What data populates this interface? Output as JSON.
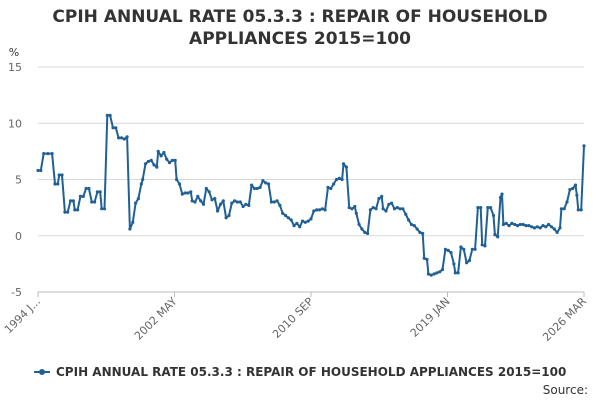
{
  "chart_data": {
    "type": "line",
    "title": "CPIH ANNUAL RATE 05.3.3 : REPAIR OF HOUSEHOLD APPLIANCES 2015=100",
    "ylabel": "%",
    "xlabel": "",
    "ylim": [
      -5,
      15
    ],
    "yticks": [
      -5,
      0,
      5,
      10,
      15
    ],
    "x_tick_labels": [
      "1994 J...",
      "2002 MAY",
      "2010 SEP",
      "2019 JAN",
      "2026 MAR"
    ],
    "x_range": [
      "1994-01",
      "2026-03"
    ],
    "grid": "horizontal",
    "legend_position": "bottom",
    "series": [
      {
        "name": "CPIH ANNUAL RATE 05.3.3 : REPAIR OF HOUSEHOLD APPLIANCES 2015=100",
        "color": "#206095",
        "points": [
          [
            "1994-01",
            5.8
          ],
          [
            "1994-03",
            5.8
          ],
          [
            "1994-05",
            7.3
          ],
          [
            "1994-08",
            7.3
          ],
          [
            "1994-11",
            7.3
          ],
          [
            "1995-01",
            4.6
          ],
          [
            "1995-03",
            4.6
          ],
          [
            "1995-04",
            5.4
          ],
          [
            "1995-06",
            5.4
          ],
          [
            "1995-08",
            2.1
          ],
          [
            "1995-10",
            2.1
          ],
          [
            "1995-12",
            3.1
          ],
          [
            "1996-02",
            3.1
          ],
          [
            "1996-03",
            2.3
          ],
          [
            "1996-05",
            2.3
          ],
          [
            "1996-07",
            3.5
          ],
          [
            "1996-09",
            3.5
          ],
          [
            "1996-11",
            4.2
          ],
          [
            "1997-01",
            4.2
          ],
          [
            "1997-03",
            3.0
          ],
          [
            "1997-05",
            3.0
          ],
          [
            "1997-07",
            3.9
          ],
          [
            "1997-09",
            3.9
          ],
          [
            "1997-10",
            2.4
          ],
          [
            "1997-12",
            2.4
          ],
          [
            "1998-02",
            10.7
          ],
          [
            "1998-04",
            10.7
          ],
          [
            "1998-06",
            9.6
          ],
          [
            "1998-08",
            9.6
          ],
          [
            "1998-10",
            8.7
          ],
          [
            "1998-12",
            8.7
          ],
          [
            "1999-02",
            8.6
          ],
          [
            "1999-04",
            8.8
          ],
          [
            "1999-06",
            0.6
          ],
          [
            "1999-08",
            1.2
          ],
          [
            "1999-10",
            2.9
          ],
          [
            "1999-12",
            3.3
          ],
          [
            "2000-02",
            4.6
          ],
          [
            "2000-03",
            5.0
          ],
          [
            "2000-05",
            6.4
          ],
          [
            "2000-07",
            6.6
          ],
          [
            "2000-09",
            6.7
          ],
          [
            "2000-11",
            6.3
          ],
          [
            "2001-01",
            6.1
          ],
          [
            "2001-02",
            7.5
          ],
          [
            "2001-04",
            7.1
          ],
          [
            "2001-06",
            7.4
          ],
          [
            "2001-08",
            6.8
          ],
          [
            "2001-10",
            6.5
          ],
          [
            "2001-12",
            6.7
          ],
          [
            "2002-02",
            6.7
          ],
          [
            "2002-03",
            5.0
          ],
          [
            "2002-05",
            4.6
          ],
          [
            "2002-07",
            3.7
          ],
          [
            "2002-09",
            3.8
          ],
          [
            "2002-11",
            3.8
          ],
          [
            "2003-01",
            3.9
          ],
          [
            "2003-02",
            3.1
          ],
          [
            "2003-04",
            3.0
          ],
          [
            "2003-06",
            3.5
          ],
          [
            "2003-08",
            3.1
          ],
          [
            "2003-10",
            2.8
          ],
          [
            "2003-12",
            4.2
          ],
          [
            "2004-02",
            3.9
          ],
          [
            "2004-04",
            3.2
          ],
          [
            "2004-06",
            3.3
          ],
          [
            "2004-08",
            2.2
          ],
          [
            "2004-10",
            2.8
          ],
          [
            "2004-12",
            3.1
          ],
          [
            "2005-02",
            1.6
          ],
          [
            "2005-04",
            1.8
          ],
          [
            "2005-06",
            2.9
          ],
          [
            "2005-08",
            3.1
          ],
          [
            "2005-10",
            3.0
          ],
          [
            "2005-12",
            3.0
          ],
          [
            "2006-02",
            2.6
          ],
          [
            "2006-04",
            2.8
          ],
          [
            "2006-06",
            2.7
          ],
          [
            "2006-08",
            4.5
          ],
          [
            "2006-10",
            4.2
          ],
          [
            "2006-12",
            4.2
          ],
          [
            "2007-02",
            4.3
          ],
          [
            "2007-04",
            4.9
          ],
          [
            "2007-06",
            4.7
          ],
          [
            "2007-08",
            4.6
          ],
          [
            "2007-10",
            3.0
          ],
          [
            "2007-12",
            3.0
          ],
          [
            "2008-02",
            3.1
          ],
          [
            "2008-04",
            2.7
          ],
          [
            "2008-06",
            2.0
          ],
          [
            "2008-08",
            1.8
          ],
          [
            "2008-10",
            1.6
          ],
          [
            "2008-12",
            1.4
          ],
          [
            "2009-02",
            0.9
          ],
          [
            "2009-04",
            1.1
          ],
          [
            "2009-06",
            0.8
          ],
          [
            "2009-08",
            1.3
          ],
          [
            "2009-10",
            1.2
          ],
          [
            "2009-12",
            1.3
          ],
          [
            "2010-02",
            1.5
          ],
          [
            "2010-04",
            2.2
          ],
          [
            "2010-06",
            2.3
          ],
          [
            "2010-08",
            2.3
          ],
          [
            "2010-10",
            2.4
          ],
          [
            "2010-12",
            2.3
          ],
          [
            "2011-02",
            4.3
          ],
          [
            "2011-04",
            4.2
          ],
          [
            "2011-06",
            4.6
          ],
          [
            "2011-08",
            5.0
          ],
          [
            "2011-10",
            5.1
          ],
          [
            "2011-12",
            5.0
          ],
          [
            "2012-01",
            6.4
          ],
          [
            "2012-03",
            6.1
          ],
          [
            "2012-05",
            2.5
          ],
          [
            "2012-07",
            2.4
          ],
          [
            "2012-09",
            2.6
          ],
          [
            "2012-10",
            2.0
          ],
          [
            "2012-12",
            1.0
          ],
          [
            "2013-02",
            0.6
          ],
          [
            "2013-04",
            0.3
          ],
          [
            "2013-06",
            0.2
          ],
          [
            "2013-08",
            2.3
          ],
          [
            "2013-10",
            2.5
          ],
          [
            "2013-12",
            2.4
          ],
          [
            "2014-02",
            3.3
          ],
          [
            "2014-04",
            3.5
          ],
          [
            "2014-05",
            2.4
          ],
          [
            "2014-07",
            2.2
          ],
          [
            "2014-09",
            2.8
          ],
          [
            "2014-11",
            2.9
          ],
          [
            "2015-01",
            2.4
          ],
          [
            "2015-03",
            2.5
          ],
          [
            "2015-05",
            2.4
          ],
          [
            "2015-07",
            2.4
          ],
          [
            "2015-09",
            1.9
          ],
          [
            "2015-11",
            1.4
          ],
          [
            "2016-01",
            1.0
          ],
          [
            "2016-03",
            0.9
          ],
          [
            "2016-05",
            0.6
          ],
          [
            "2016-07",
            0.3
          ],
          [
            "2016-09",
            0.2
          ],
          [
            "2016-10",
            -2.0
          ],
          [
            "2016-12",
            -2.1
          ],
          [
            "2017-01",
            -3.4
          ],
          [
            "2017-03",
            -3.5
          ],
          [
            "2017-05",
            -3.4
          ],
          [
            "2017-07",
            -3.3
          ],
          [
            "2017-09",
            -3.2
          ],
          [
            "2017-11",
            -3.0
          ],
          [
            "2018-01",
            -1.2
          ],
          [
            "2018-03",
            -1.3
          ],
          [
            "2018-05",
            -1.5
          ],
          [
            "2018-07",
            -2.5
          ],
          [
            "2018-08",
            -3.3
          ],
          [
            "2018-10",
            -3.3
          ],
          [
            "2018-12",
            -1.0
          ],
          [
            "2019-02",
            -1.2
          ],
          [
            "2019-04",
            -2.4
          ],
          [
            "2019-06",
            -2.2
          ],
          [
            "2019-08",
            -1.2
          ],
          [
            "2019-10",
            -1.2
          ],
          [
            "2019-12",
            2.5
          ],
          [
            "2020-02",
            2.5
          ],
          [
            "2020-03",
            -0.8
          ],
          [
            "2020-05",
            -0.9
          ],
          [
            "2020-07",
            2.5
          ],
          [
            "2020-09",
            2.5
          ],
          [
            "2020-11",
            1.8
          ],
          [
            "2020-12",
            0.1
          ],
          [
            "2021-02",
            -0.1
          ],
          [
            "2021-04",
            3.4
          ],
          [
            "2021-05",
            3.7
          ],
          [
            "2021-06",
            1.0
          ],
          [
            "2021-08",
            1.1
          ],
          [
            "2021-10",
            0.9
          ],
          [
            "2021-12",
            1.1
          ],
          [
            "2022-02",
            1.0
          ],
          [
            "2022-04",
            0.9
          ],
          [
            "2022-06",
            1.0
          ],
          [
            "2022-08",
            1.0
          ],
          [
            "2022-10",
            0.9
          ],
          [
            "2022-12",
            0.9
          ],
          [
            "2023-02",
            0.8
          ],
          [
            "2023-04",
            0.7
          ],
          [
            "2023-06",
            0.8
          ],
          [
            "2023-08",
            0.7
          ],
          [
            "2023-10",
            0.9
          ],
          [
            "2023-12",
            0.8
          ],
          [
            "2024-02",
            1.0
          ],
          [
            "2024-04",
            0.8
          ],
          [
            "2024-06",
            0.6
          ],
          [
            "2024-08",
            0.3
          ],
          [
            "2024-10",
            0.7
          ],
          [
            "2024-11",
            2.4
          ],
          [
            "2025-01",
            2.4
          ],
          [
            "2025-03",
            3.0
          ],
          [
            "2025-05",
            4.1
          ],
          [
            "2025-07",
            4.2
          ],
          [
            "2025-09",
            4.5
          ],
          [
            "2025-10",
            3.6
          ],
          [
            "2025-11",
            2.3
          ],
          [
            "2026-01",
            2.3
          ],
          [
            "2026-03",
            8.0
          ]
        ]
      }
    ],
    "source_label": "Source:"
  }
}
